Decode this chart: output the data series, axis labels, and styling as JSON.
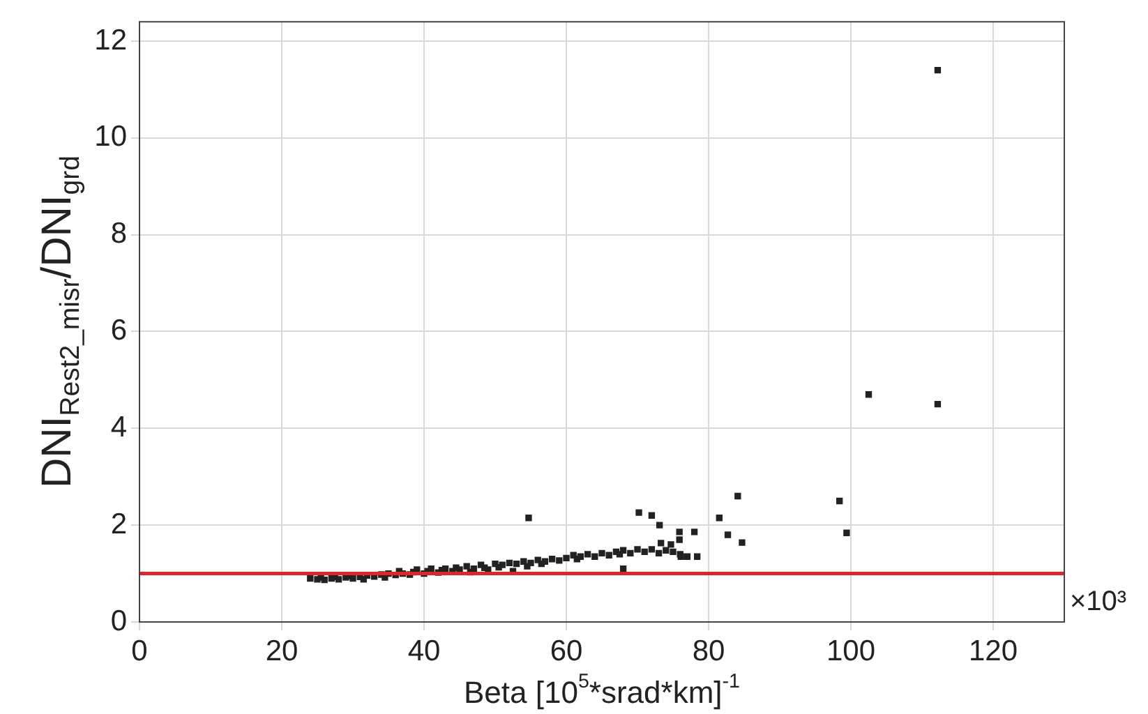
{
  "chart_data": {
    "type": "scatter",
    "xlabel": "Beta [10$^{5}$*srad*km]$^{-1}$",
    "ylabel": "DNI$_{Rest2_misr}$/DNI$_{grd}$",
    "annotations": [
      "×10³"
    ],
    "series": [
      {
        "color": "#222222",
        "x": [
          24,
          25,
          25.5,
          26,
          27,
          27.5,
          28,
          29,
          29.5,
          30,
          31,
          31.5,
          32,
          33,
          34,
          34.5,
          35,
          36,
          36.5,
          37,
          38,
          38.5,
          39,
          40,
          40.5,
          41,
          42,
          42.5,
          43,
          44,
          44.5,
          45,
          46,
          46.5,
          47,
          48,
          48.5,
          49,
          50,
          50.5,
          51,
          52,
          52.5,
          53,
          54,
          54.5,
          55,
          56,
          56.5,
          57,
          58,
          59,
          60,
          61,
          61.5,
          62,
          63,
          64,
          65,
          66,
          67,
          67.5,
          68,
          69,
          70,
          71,
          72,
          73,
          74,
          75,
          76,
          77,
          68,
          54.7,
          70.2,
          72,
          73.1,
          75.9,
          78,
          75.9,
          74.7,
          73.3,
          78.4,
          76.1,
          81.5,
          82.7,
          84.1,
          84.7,
          98.4,
          99.4,
          102.5,
          112.2,
          112.2
        ],
        "values": [
          0.9,
          0.88,
          0.92,
          0.87,
          0.9,
          0.93,
          0.88,
          0.92,
          0.95,
          0.9,
          0.93,
          0.88,
          0.96,
          0.94,
          0.98,
          0.92,
          1.0,
          0.97,
          1.05,
          1.0,
          0.98,
          1.03,
          1.08,
          1.0,
          1.05,
          1.1,
          1.02,
          1.07,
          1.1,
          1.05,
          1.12,
          1.08,
          1.15,
          1.03,
          1.1,
          1.18,
          1.12,
          1.08,
          1.2,
          1.13,
          1.18,
          1.22,
          1.05,
          1.2,
          1.25,
          1.15,
          1.22,
          1.28,
          1.2,
          1.25,
          1.3,
          1.27,
          1.32,
          1.38,
          1.3,
          1.35,
          1.4,
          1.35,
          1.42,
          1.38,
          1.45,
          1.4,
          1.48,
          1.42,
          1.5,
          1.45,
          1.5,
          1.42,
          1.48,
          1.45,
          1.4,
          1.35,
          1.1,
          2.15,
          2.26,
          2.2,
          2.0,
          1.86,
          1.86,
          1.7,
          1.6,
          1.63,
          1.35,
          1.35,
          2.15,
          1.8,
          2.6,
          1.64,
          2.5,
          1.84,
          4.7,
          11.4,
          4.5
        ]
      }
    ],
    "xlim": [
      0,
      130
    ],
    "ylim": [
      0,
      12.4
    ],
    "xticks": [
      0,
      20,
      40,
      60,
      80,
      100,
      120
    ],
    "yticks": [
      0,
      2,
      4,
      6,
      8,
      10,
      12
    ],
    "grid": true,
    "marker": "square",
    "ref_lines": [
      {
        "axis": "y",
        "value": 1,
        "color": "#e8202a"
      }
    ]
  }
}
